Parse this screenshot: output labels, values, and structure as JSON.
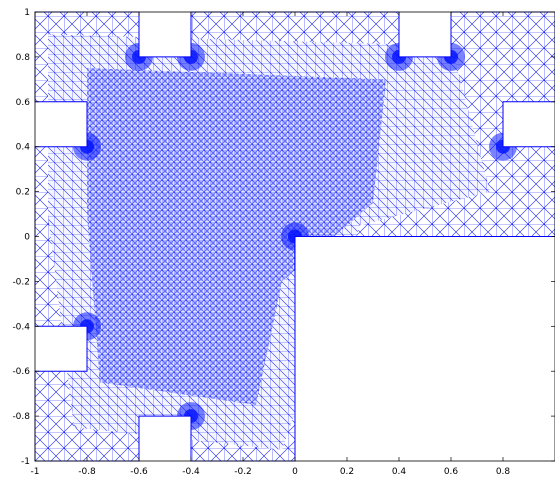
{
  "chart_data": {
    "type": "mesh",
    "title": "",
    "xlabel": "",
    "ylabel": "",
    "xlim": [
      -1,
      1
    ],
    "ylim": [
      -1,
      1
    ],
    "x_ticks": [
      -1,
      -0.8,
      -0.6,
      -0.4,
      -0.2,
      0,
      0.2,
      0.4,
      0.6,
      0.8
    ],
    "x_tick_labels": [
      "-1",
      "-0.8",
      "-0.6",
      "-0.4",
      "-0.2",
      "0",
      "0.2",
      "0.4",
      "0.6",
      "0.8"
    ],
    "y_ticks": [
      -1,
      -0.8,
      -0.6,
      -0.4,
      -0.2,
      0,
      0.2,
      0.4,
      0.6,
      0.8,
      1
    ],
    "y_tick_labels": [
      "-1",
      "-0.8",
      "-0.6",
      "-0.4",
      "-0.2",
      "0",
      "0.2",
      "0.4",
      "0.6",
      "0.8",
      "1"
    ],
    "domain_polygon": [
      [
        -1,
        -1
      ],
      [
        -0.6,
        -1
      ],
      [
        -0.6,
        -0.8
      ],
      [
        -0.4,
        -0.8
      ],
      [
        -0.4,
        -1
      ],
      [
        0,
        -1
      ],
      [
        0,
        0
      ],
      [
        1,
        0
      ],
      [
        1,
        0.4
      ],
      [
        0.8,
        0.4
      ],
      [
        0.8,
        0.6
      ],
      [
        1,
        0.6
      ],
      [
        1,
        1
      ],
      [
        0.6,
        1
      ],
      [
        0.6,
        0.8
      ],
      [
        0.4,
        0.8
      ],
      [
        0.4,
        1
      ],
      [
        -0.4,
        1
      ],
      [
        -0.4,
        0.8
      ],
      [
        -0.6,
        0.8
      ],
      [
        -0.6,
        1
      ],
      [
        -1,
        1
      ],
      [
        -1,
        0.6
      ],
      [
        -0.8,
        0.6
      ],
      [
        -0.8,
        0.4
      ],
      [
        -1,
        0.4
      ],
      [
        -1,
        -0.4
      ],
      [
        -0.8,
        -0.4
      ],
      [
        -0.8,
        -0.6
      ],
      [
        -1,
        -0.6
      ],
      [
        -1,
        -1
      ]
    ],
    "mesh_color": "#0000ff",
    "refinement_points": [
      [
        -0.4,
        0.8
      ],
      [
        -0.6,
        0.8
      ],
      [
        0.4,
        0.8
      ],
      [
        0.6,
        0.8
      ],
      [
        -0.8,
        0.4
      ],
      [
        0.8,
        0.4
      ],
      [
        -0.8,
        -0.4
      ],
      [
        -0.4,
        -0.8
      ],
      [
        0,
        0
      ]
    ],
    "grid": false
  }
}
